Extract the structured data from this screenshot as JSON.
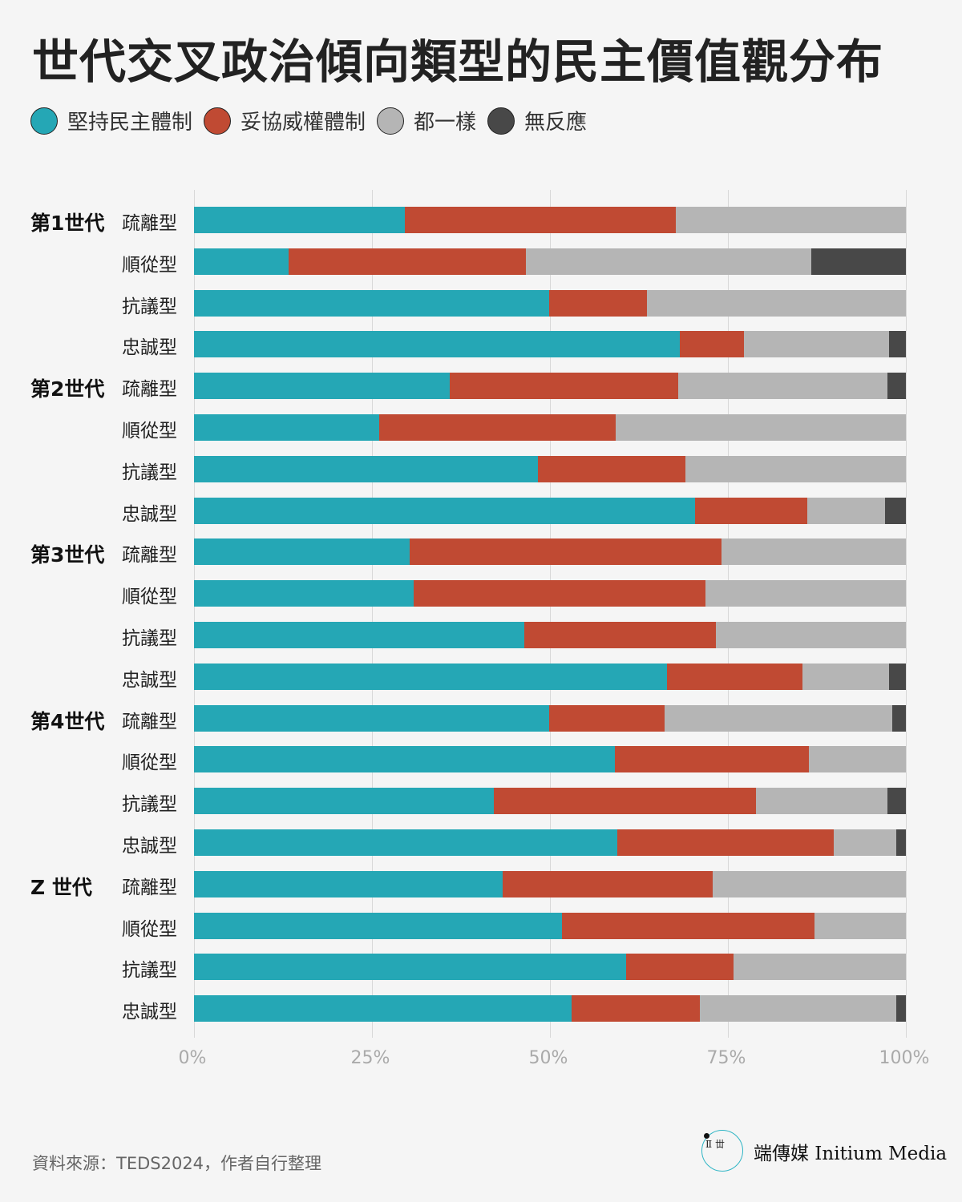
{
  "title": "世代交叉政治傾向類型的民主價值觀分布",
  "chart_data": {
    "type": "bar",
    "stacked": true,
    "orientation": "horizontal",
    "title": "世代交叉政治傾向類型的民主價值觀分布",
    "xlabel": "",
    "ylabel": "",
    "xlim": [
      0,
      100
    ],
    "x_ticks": [
      "0%",
      "25%",
      "50%",
      "75%",
      "100%"
    ],
    "legend": "top-left",
    "grid": true,
    "groups": [
      "第1世代",
      "第2世代",
      "第3世代",
      "第4世代",
      "Z 世代"
    ],
    "types": [
      "疏離型",
      "順從型",
      "抗議型",
      "忠誠型"
    ],
    "series": [
      {
        "name": "堅持民主體制",
        "color": "#25a7b5",
        "values": [
          29.6,
          13.3,
          49.9,
          68.2,
          35.9,
          26.0,
          48.3,
          70.4,
          30.3,
          30.9,
          46.4,
          66.4,
          49.9,
          59.1,
          42.1,
          59.5,
          43.4,
          51.7,
          60.7,
          53.0
        ]
      },
      {
        "name": "妥協威權體制",
        "color": "#c04a33",
        "values": [
          38.1,
          33.3,
          13.7,
          9.0,
          32.1,
          33.2,
          20.7,
          15.8,
          43.8,
          40.9,
          26.9,
          19.1,
          16.2,
          27.3,
          36.8,
          30.4,
          29.5,
          35.5,
          15.1,
          18.1
        ]
      },
      {
        "name": "都一樣",
        "color": "#b5b5b5",
        "values": [
          32.3,
          40.1,
          36.4,
          20.4,
          29.4,
          40.8,
          31.0,
          10.9,
          25.9,
          28.2,
          26.7,
          12.1,
          32.0,
          13.6,
          18.5,
          8.7,
          27.1,
          12.8,
          24.2,
          27.5
        ]
      },
      {
        "name": "無反應",
        "color": "#484848",
        "values": [
          0,
          13.3,
          0,
          2.4,
          2.6,
          0,
          0,
          2.9,
          0,
          0,
          0,
          2.4,
          1.9,
          0,
          2.6,
          1.4,
          0,
          0,
          0,
          1.4
        ]
      }
    ]
  },
  "source": "資料來源：TEDS2024，作者自行整理",
  "brand": {
    "name": "端傳媒 Initium Media",
    "logo_text": "端"
  }
}
